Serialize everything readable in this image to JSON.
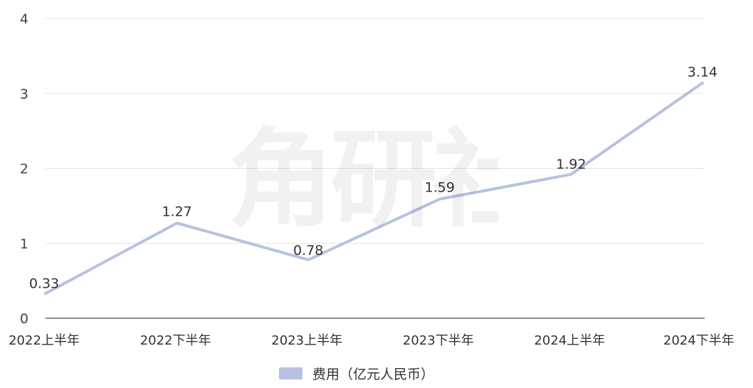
{
  "chart_data": {
    "type": "line",
    "categories": [
      "2022上半年",
      "2022下半年",
      "2023上半年",
      "2023下半年",
      "2024上半年",
      "2024下半年"
    ],
    "series": [
      {
        "name": "费用（亿元人民币）",
        "values": [
          0.33,
          1.27,
          0.78,
          1.59,
          1.92,
          3.14
        ],
        "color": "#b7c1e1"
      }
    ],
    "data_labels": [
      "0.33",
      "1.27",
      "0.78",
      "1.59",
      "1.92",
      "3.14"
    ],
    "y_ticks": [
      "0",
      "1",
      "2",
      "3",
      "4"
    ],
    "ylim": [
      0,
      4
    ],
    "grid": true,
    "legend_position": "bottom",
    "watermark": "角研社"
  }
}
